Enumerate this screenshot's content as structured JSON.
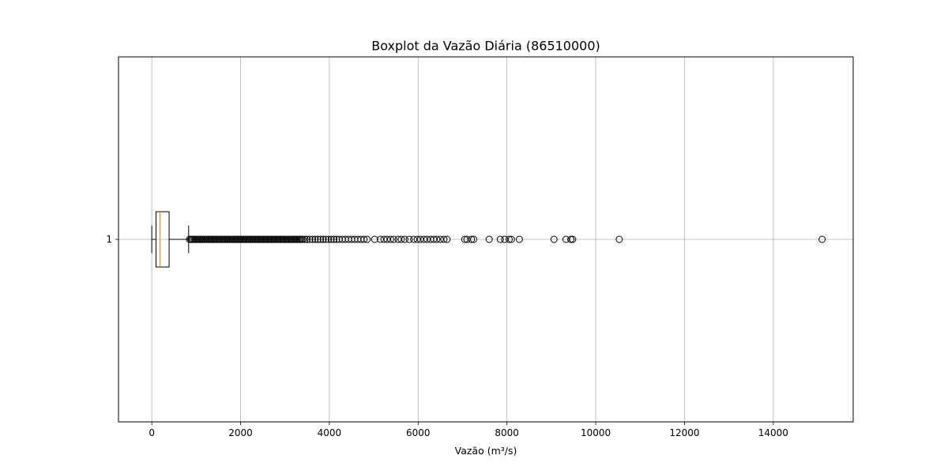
{
  "chart_data": {
    "type": "boxplot",
    "orientation": "horizontal",
    "title": "Boxplot da Vazão Diária (86510000)",
    "xlabel": "Vazão (m³/s)",
    "ylabel": "",
    "xlim": [
      -750,
      15800
    ],
    "x_ticks": [
      0,
      2000,
      4000,
      6000,
      8000,
      10000,
      12000,
      14000
    ],
    "y_ticks": [
      "1"
    ],
    "grid": true,
    "colors": {
      "box": "#000000",
      "median": "#ff7f0e",
      "grid": "#b0b0b0",
      "flier": "#000000"
    },
    "box": {
      "category": "1",
      "whisker_low": 0,
      "q1": 95,
      "median": 185,
      "q3": 390,
      "whisker_high": 830
    },
    "fliers": [
      850,
      880,
      910,
      940,
      970,
      1000,
      1030,
      1060,
      1090,
      1120,
      1150,
      1180,
      1210,
      1240,
      1270,
      1300,
      1330,
      1360,
      1390,
      1420,
      1450,
      1480,
      1510,
      1540,
      1570,
      1600,
      1630,
      1660,
      1690,
      1720,
      1750,
      1780,
      1810,
      1840,
      1870,
      1900,
      1930,
      1960,
      1990,
      2020,
      2050,
      2080,
      2110,
      2140,
      2170,
      2200,
      2230,
      2260,
      2290,
      2320,
      2350,
      2380,
      2410,
      2440,
      2470,
      2500,
      2530,
      2560,
      2590,
      2620,
      2650,
      2680,
      2710,
      2740,
      2770,
      2800,
      2830,
      2860,
      2890,
      2920,
      2950,
      2980,
      3010,
      3040,
      3070,
      3100,
      3130,
      3160,
      3190,
      3220,
      3250,
      3280,
      3310,
      3340,
      3370,
      3400,
      3450,
      3500,
      3560,
      3620,
      3680,
      3740,
      3800,
      3860,
      3920,
      3980,
      4040,
      4100,
      4160,
      4220,
      4290,
      4360,
      4430,
      4500,
      4570,
      4640,
      4710,
      4780,
      4850,
      5020,
      5150,
      5230,
      5300,
      5380,
      5450,
      5550,
      5620,
      5700,
      5800,
      5900,
      5980,
      6050,
      6130,
      6200,
      6280,
      6350,
      6420,
      6500,
      6580,
      6650,
      7050,
      7100,
      7200,
      7250,
      7600,
      7850,
      7950,
      8050,
      8100,
      8280,
      9060,
      9330,
      9440,
      9480,
      10530,
      15100
    ]
  }
}
